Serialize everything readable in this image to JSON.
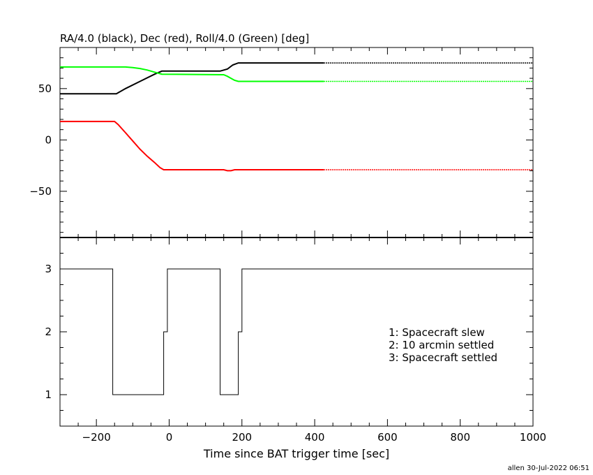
{
  "chart_data": [
    {
      "type": "line",
      "title": "RA/4.0 (black), Dec (red), Roll/4.0 (Green) [deg]",
      "xlim": [
        -300,
        1000
      ],
      "ylim": [
        -95,
        90
      ],
      "yticks": [
        -50,
        0,
        50
      ],
      "yticklabels": [
        "−50",
        "0",
        "50"
      ],
      "series": [
        {
          "color": "#000000",
          "x": [
            -300,
            -145,
            -120,
            -80,
            -40,
            -20,
            140,
            160,
            175,
            190,
            425
          ],
          "y": [
            45,
            45,
            50,
            57,
            64,
            67,
            67,
            69,
            73,
            75,
            75
          ],
          "dashed_extension": {
            "x": [
              425,
              1000
            ],
            "y": [
              75,
              75
            ]
          }
        },
        {
          "color": "#ff0000",
          "x": [
            -300,
            -150,
            -140,
            -120,
            -100,
            -80,
            -60,
            -40,
            -25,
            -15,
            150,
            160,
            170,
            180,
            425
          ],
          "y": [
            18,
            18,
            15,
            7,
            -1,
            -9,
            -16,
            -22,
            -27,
            -29,
            -29,
            -30,
            -30,
            -29,
            -29
          ],
          "dashed_extension": {
            "x": [
              425,
              1000
            ],
            "y": [
              -29,
              -29
            ]
          }
        },
        {
          "color": "#00ff00",
          "x": [
            -300,
            -120,
            -100,
            -80,
            -60,
            -40,
            -20,
            150,
            160,
            170,
            180,
            190,
            425
          ],
          "y": [
            71,
            71,
            70.5,
            69.5,
            68,
            66,
            64,
            63.5,
            62,
            60,
            58,
            57,
            57
          ],
          "dashed_extension": {
            "x": [
              425,
              1000
            ],
            "y": [
              57,
              57
            ]
          }
        }
      ]
    },
    {
      "type": "line",
      "xlabel": "Time since BAT trigger time [sec]",
      "xlim": [
        -300,
        1000
      ],
      "ylim": [
        0.5,
        3.5
      ],
      "xticks": [
        -200,
        0,
        200,
        400,
        600,
        800,
        1000
      ],
      "xticklabels": [
        "−200",
        "0",
        "200",
        "400",
        "600",
        "800",
        "1000"
      ],
      "yticks": [
        1,
        2,
        3
      ],
      "yticklabels": [
        "1",
        "2",
        "3"
      ],
      "series": [
        {
          "color": "#000000",
          "step": true,
          "x": [
            -300,
            -155,
            -155,
            -15,
            -15,
            -5,
            -5,
            140,
            140,
            190,
            190,
            200,
            200,
            1000
          ],
          "y": [
            3,
            3,
            1,
            1,
            2,
            2,
            3,
            3,
            1,
            1,
            2,
            2,
            3,
            3
          ]
        }
      ],
      "legend": [
        "1: Spacecraft slew",
        "2: 10 arcmin settled",
        "3: Spacecraft settled"
      ]
    }
  ],
  "footer": "allen 30-Jul-2022 06:51"
}
